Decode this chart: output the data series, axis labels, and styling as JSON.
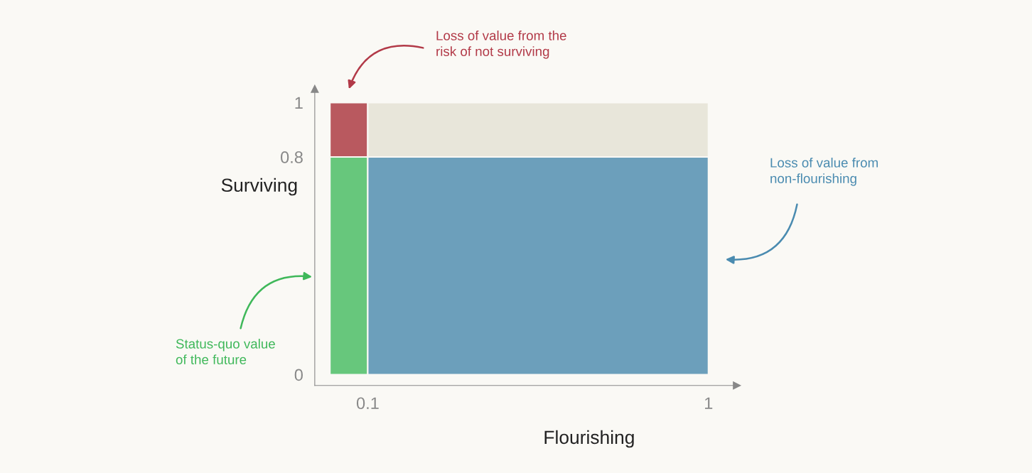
{
  "chart_data": {
    "type": "bar",
    "stacked": true,
    "xlabel": "Flourishing",
    "ylabel": "Surviving",
    "x": [
      0.05,
      0.55
    ],
    "series": [
      {
        "color": "#67c77c",
        "values": [
          0.8,
          null
        ]
      },
      {
        "color": "#b9595f",
        "values": [
          0.2,
          null
        ]
      },
      {
        "color": "#6c9fbb",
        "values": [
          null,
          0.8
        ]
      },
      {
        "color": "#e8e6da",
        "values": [
          null,
          0.2
        ]
      }
    ],
    "xlim": [
      -0.04,
      1.075
    ],
    "ylim": [
      -0.04,
      1.05
    ],
    "xticks": [
      0.1,
      1
    ],
    "yticks": [
      0,
      0.8,
      1
    ],
    "annotations": [
      "Loss of value from the\nrisk of not surviving",
      "Loss of value from\nnon-flourishing",
      "Status-quo value\nof the future"
    ]
  }
}
